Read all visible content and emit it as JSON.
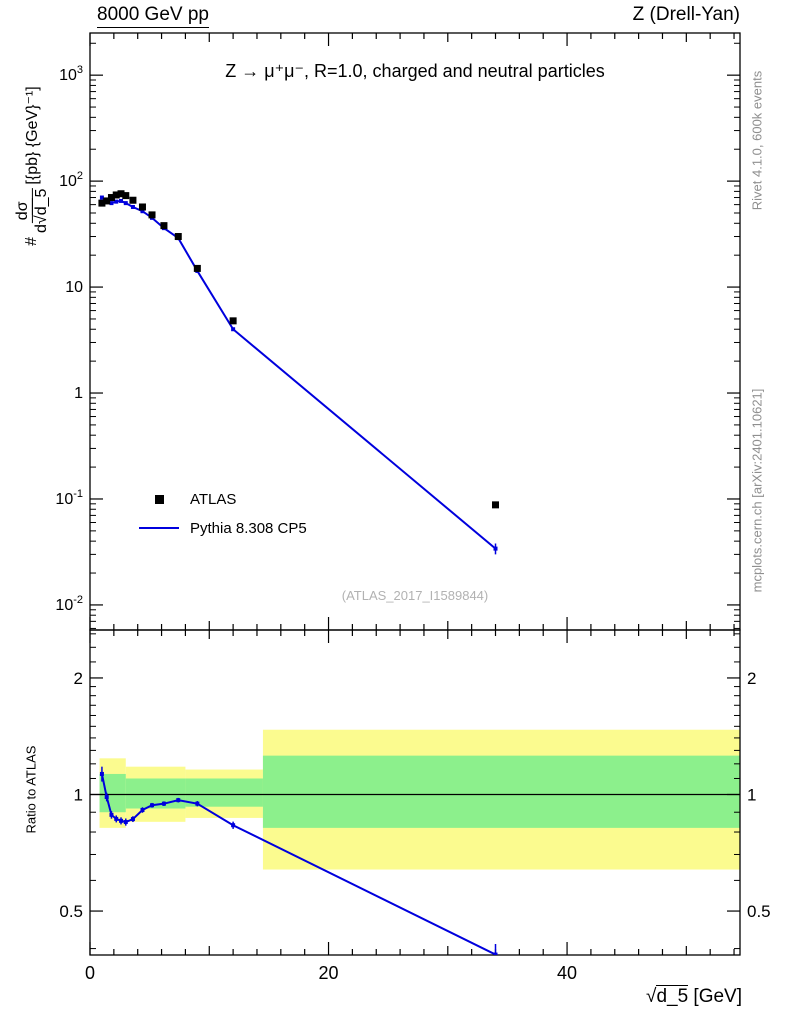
{
  "header": {
    "left": "8000 GeV pp",
    "right": "Z (Drell-Yan)"
  },
  "main_panel": {
    "title": "Z → μ⁺μ⁻, R=1.0, charged and neutral particles",
    "ylabel": {
      "prefix": "#",
      "numerator": "dσ",
      "den_prefix": "d√",
      "den_root": "d_5",
      "units": "[{pb} {GeV}⁻¹]"
    },
    "legend": {
      "items": [
        {
          "label": "ATLAS",
          "type": "marker"
        },
        {
          "label": "Pythia 8.308 CP5",
          "type": "line"
        }
      ]
    },
    "ref_label": "(ATLAS_2017_I1589844)"
  },
  "ratio_panel": {
    "ylabel": "Ratio to ATLAS"
  },
  "xaxis": {
    "root_symbol": "√",
    "root_text": "d_5",
    "units_text": " [GeV]"
  },
  "watermarks": {
    "right_top": "Rivet 4.1.0,  600k events",
    "right_bottom": "mcplots.cern.ch [arXiv:2401.10621]"
  },
  "colors": {
    "pythia_blue": "#0000dd",
    "atlas_black": "#000000",
    "band_yellow": "#fbfb8f",
    "band_green": "#8cf08c",
    "watermark_gray": "#8f8f8f",
    "ref_gray": "#b2b2b2"
  },
  "chart_data": {
    "type": "line",
    "title": "Z → μ⁺μ⁻, R=1.0, charged and neutral particles",
    "xlabel": "√d_5 [GeV]",
    "ylabel": "# dσ/d√d_5 [{pb} {GeV}⁻¹]",
    "xlim": [
      0,
      54.5
    ],
    "xticks": [
      {
        "v": 0,
        "t": "0"
      },
      {
        "v": 20,
        "t": "20"
      },
      {
        "v": 40,
        "t": "40"
      }
    ],
    "main": {
      "ylog": true,
      "ylim": [
        0.0058,
        2500
      ],
      "yticks": [
        {
          "v": 1000,
          "b": "10",
          "e": "3"
        },
        {
          "v": 100,
          "b": "10",
          "e": "2"
        },
        {
          "v": 10,
          "b": "10",
          "e": ""
        },
        {
          "v": 1,
          "b": "1",
          "e": ""
        },
        {
          "v": 0.1,
          "b": "10",
          "e": "-1"
        },
        {
          "v": 0.01,
          "b": "10",
          "e": "-2"
        }
      ],
      "series": [
        {
          "name": "ATLAS",
          "style": "marker",
          "x": [
            1.0,
            1.4,
            1.8,
            2.2,
            2.6,
            3.0,
            3.6,
            4.4,
            5.2,
            6.2,
            7.4,
            9.0,
            12.0,
            34.0
          ],
          "y": [
            62,
            65,
            70,
            74,
            76,
            73,
            66,
            57,
            48,
            38,
            30,
            15,
            4.8,
            0.088
          ],
          "yerr": [
            3,
            3,
            3.5,
            3.5,
            3.5,
            3,
            3,
            2.5,
            2.2,
            1.8,
            1.4,
            0.7,
            0.22,
            0.004
          ]
        },
        {
          "name": "Pythia 8.308 CP5",
          "style": "line+marker",
          "x": [
            1.0,
            1.4,
            1.8,
            2.2,
            2.6,
            3.0,
            3.6,
            4.4,
            5.2,
            6.2,
            7.4,
            9.0,
            12.0,
            34.0
          ],
          "y": [
            70,
            64,
            62,
            64,
            65,
            62,
            57,
            52,
            45,
            36,
            29,
            14.2,
            4.0,
            0.034
          ],
          "yerr": [
            2,
            1.5,
            1.5,
            1.5,
            1.5,
            1.5,
            1.2,
            1,
            0.9,
            0.8,
            0.6,
            0.4,
            0.12,
            0.004
          ]
        }
      ]
    },
    "ratio": {
      "ylog": true,
      "ylim": [
        0.385,
        2.66
      ],
      "yticks": [
        {
          "v": 2,
          "t": "2"
        },
        {
          "v": 1,
          "t": "1"
        },
        {
          "v": 0.5,
          "t": "0.5"
        }
      ],
      "reference_line": 1,
      "line": {
        "name": "Pythia 8.308 CP5 / ATLAS",
        "x": [
          1.0,
          1.4,
          1.8,
          2.2,
          2.6,
          3.0,
          3.6,
          4.4,
          5.2,
          6.2,
          7.4,
          9.0,
          12.0,
          34.0
        ],
        "y": [
          1.13,
          0.985,
          0.886,
          0.865,
          0.855,
          0.849,
          0.864,
          0.912,
          0.938,
          0.947,
          0.967,
          0.947,
          0.833,
          0.386
        ],
        "yerr": [
          0.05,
          0.025,
          0.02,
          0.018,
          0.018,
          0.018,
          0.015,
          0.015,
          0.013,
          0.013,
          0.013,
          0.015,
          0.018,
          0.025
        ]
      },
      "bands": [
        {
          "x0": 0.8,
          "x1": 3.0,
          "yellow": [
            0.82,
            1.24
          ],
          "green": [
            0.9,
            1.13
          ]
        },
        {
          "x0": 3.0,
          "x1": 8.0,
          "yellow": [
            0.85,
            1.18
          ],
          "green": [
            0.92,
            1.1
          ]
        },
        {
          "x0": 8.0,
          "x1": 14.5,
          "yellow": [
            0.87,
            1.16
          ],
          "green": [
            0.93,
            1.1
          ]
        },
        {
          "x0": 14.5,
          "x1": 54.5,
          "yellow": [
            0.64,
            1.47
          ],
          "green": [
            0.82,
            1.26
          ]
        }
      ]
    }
  }
}
